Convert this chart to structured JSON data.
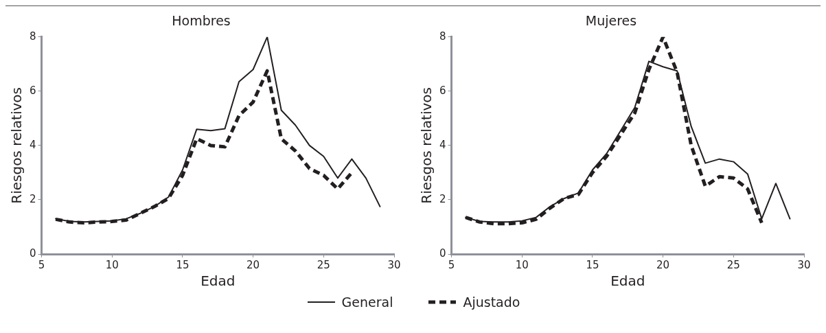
{
  "chart_data": [
    {
      "type": "line",
      "title": "Hombres",
      "xlabel": "Edad",
      "ylabel": "Riesgos relativos",
      "xlim": [
        5,
        30
      ],
      "xticks": [
        5,
        10,
        15,
        20,
        25,
        30
      ],
      "ylim": [
        0,
        8
      ],
      "yticks": [
        0,
        2,
        4,
        6,
        8
      ],
      "grid": false,
      "legend": "bottom",
      "marker": "none",
      "series": [
        {
          "name": "General",
          "color": "#231f20",
          "line_style": "solid",
          "x": [
            6,
            7,
            8,
            9,
            10,
            11,
            12,
            13,
            14,
            15,
            16,
            17,
            18,
            19,
            20,
            21,
            22,
            23,
            24,
            25,
            26,
            27,
            28,
            29
          ],
          "values": [
            1.3,
            1.2,
            1.18,
            1.2,
            1.22,
            1.3,
            1.5,
            1.75,
            2.1,
            3.1,
            4.6,
            4.55,
            4.62,
            6.35,
            6.8,
            8.0,
            5.3,
            4.75,
            4.0,
            3.6,
            2.8,
            3.5,
            2.8,
            1.75
          ]
        },
        {
          "name": "Ajustado",
          "color": "#231f20",
          "line_style": "dashed",
          "x": [
            6,
            7,
            8,
            9,
            10,
            11,
            12,
            13,
            14,
            15,
            16,
            17,
            18,
            19,
            20,
            21,
            22,
            23,
            24,
            25,
            26,
            27
          ],
          "values": [
            1.28,
            1.18,
            1.15,
            1.18,
            1.2,
            1.25,
            1.5,
            1.75,
            2.05,
            2.9,
            4.25,
            4.0,
            3.95,
            5.1,
            5.6,
            6.75,
            4.25,
            3.8,
            3.15,
            2.9,
            2.4,
            3.0
          ]
        }
      ]
    },
    {
      "type": "line",
      "title": "Mujeres",
      "xlabel": "Edad",
      "ylabel": "Riesgos relativos",
      "xlim": [
        5,
        30
      ],
      "xticks": [
        5,
        10,
        15,
        20,
        25,
        30
      ],
      "ylim": [
        0,
        8
      ],
      "yticks": [
        0,
        2,
        4,
        6,
        8
      ],
      "grid": false,
      "marker": "none",
      "series": [
        {
          "name": "General",
          "color": "#231f20",
          "line_style": "solid",
          "x": [
            6,
            7,
            8,
            9,
            10,
            11,
            12,
            13,
            14,
            15,
            16,
            17,
            18,
            19,
            20,
            21,
            22,
            23,
            24,
            25,
            26,
            27,
            28,
            29
          ],
          "values": [
            1.35,
            1.2,
            1.18,
            1.18,
            1.22,
            1.35,
            1.75,
            2.05,
            2.25,
            3.1,
            3.7,
            4.55,
            5.4,
            7.1,
            6.9,
            6.75,
            4.7,
            3.35,
            3.5,
            3.4,
            2.95,
            1.3,
            2.6,
            1.3
          ]
        },
        {
          "name": "Ajustado",
          "color": "#231f20",
          "line_style": "dashed",
          "x": [
            6,
            7,
            8,
            9,
            10,
            11,
            12,
            13,
            14,
            15,
            16,
            17,
            18,
            19,
            20,
            21,
            22,
            23,
            24,
            25,
            26,
            27
          ],
          "values": [
            1.35,
            1.18,
            1.12,
            1.12,
            1.15,
            1.28,
            1.7,
            2.05,
            2.2,
            3.0,
            3.6,
            4.4,
            5.2,
            6.8,
            8.0,
            6.7,
            4.0,
            2.5,
            2.85,
            2.8,
            2.4,
            1.15
          ]
        }
      ]
    }
  ]
}
